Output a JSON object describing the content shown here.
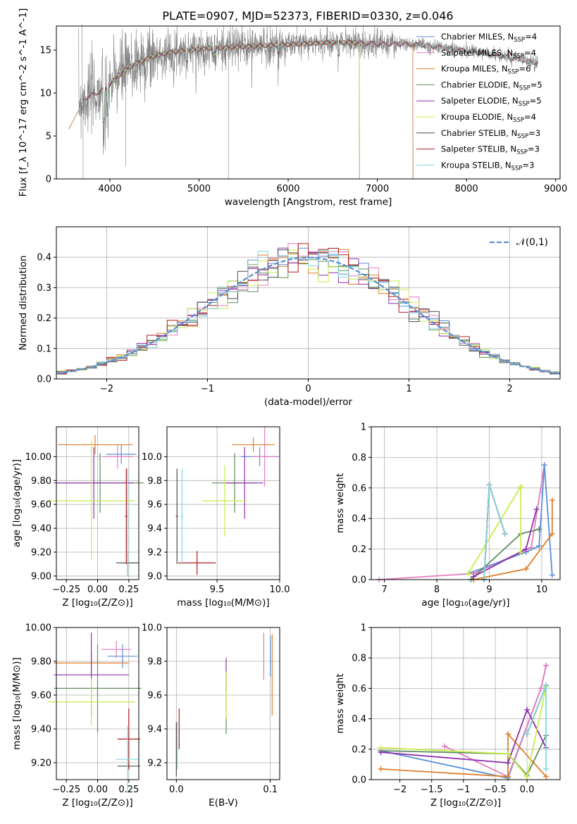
{
  "figure": {
    "title": "PLATE=0907, MJD=52373, FIBERID=0330, z=0.046"
  },
  "colors": {
    "Chabrier MILES": "#5b8fd6",
    "Salpeter MILES": "#e37dbf",
    "Kroupa MILES": "#e07f2a",
    "Chabrier ELODIE": "#5e8e5e",
    "Salpeter ELODIE": "#8e2fae",
    "Kroupa ELODIE": "#c9ec4c",
    "Chabrier STELIB": "#4d4d4d",
    "Salpeter STELIB": "#b31c1c",
    "Kroupa STELIB": "#7fd9e0",
    "gaussian": "#5b8fd6",
    "spectrum": "#808080"
  },
  "chart_data": [
    {
      "id": "spectrum",
      "type": "line",
      "title": "PLATE=0907, MJD=52373, FIBERID=0330, z=0.046",
      "xlabel": "wavelength [Angstrom, rest frame]",
      "ylabel": "Flux [f_λ 10^-17 erg cm^-2 s^-1 A^-1]",
      "xlim": [
        3400,
        9050
      ],
      "ylim": [
        0,
        17.8
      ],
      "xticks": [
        4000,
        5000,
        6000,
        7000,
        8000,
        9000
      ],
      "yticks": [
        0,
        5,
        10,
        15
      ],
      "legend_position": "right",
      "legend": [
        {
          "name": "Chabrier MILES",
          "nssp": "4"
        },
        {
          "name": "Salpeter MILES",
          "nssp": "4"
        },
        {
          "name": "Kroupa MILES",
          "nssp": "6"
        },
        {
          "name": "Chabrier ELODIE",
          "nssp": "5"
        },
        {
          "name": "Salpeter ELODIE",
          "nssp": "5"
        },
        {
          "name": "Kroupa ELODIE",
          "nssp": "4"
        },
        {
          "name": "Chabrier STELIB",
          "nssp": "3"
        },
        {
          "name": "Salpeter STELIB",
          "nssp": "3"
        },
        {
          "name": "Kroupa STELIB",
          "nssp": "3"
        }
      ],
      "data_profile": {
        "x": [
          3650,
          3750,
          3850,
          3950,
          4050,
          4150,
          4300,
          4500,
          4700,
          4900,
          5100,
          5300,
          5500,
          5700,
          5900,
          6100,
          6300,
          6500,
          6700,
          6900,
          7100,
          7300,
          7500,
          7800,
          8100,
          8400,
          8800
        ],
        "y": [
          9.0,
          9.5,
          10.0,
          10.5,
          11.5,
          12.5,
          13.5,
          14.3,
          14.8,
          15.0,
          15.2,
          15.3,
          15.4,
          15.5,
          15.6,
          15.7,
          15.8,
          15.9,
          15.9,
          15.8,
          15.7,
          15.7,
          15.6,
          15.2,
          14.8,
          14.3,
          13.5
        ]
      },
      "model_ranges": {
        "MILES": [
          3540,
          7400
        ],
        "ELODIE": [
          3900,
          6800
        ],
        "STELIB": [
          3650,
          8800
        ]
      }
    },
    {
      "id": "residuals",
      "type": "line",
      "xlabel": "(data-model)/error",
      "ylabel": "Normed distribution",
      "xlim": [
        -2.5,
        2.5
      ],
      "ylim": [
        0,
        0.5
      ],
      "xticks": [
        -2,
        -1,
        0,
        1,
        2
      ],
      "yticks": [
        0.0,
        0.1,
        0.2,
        0.3,
        0.4
      ],
      "grid": true,
      "legend_position": "top-right",
      "legend": [
        {
          "name": "𝒩(0,1)"
        }
      ],
      "hist_bin_width": 0.1
    },
    {
      "id": "age_vs_Z",
      "type": "scatter",
      "xlabel": "Z [log10(Z/Z⊙)]",
      "ylabel": "age  [log10(age/yr)]",
      "xlim": [
        -0.33,
        0.33
      ],
      "ylim": [
        8.97,
        10.25
      ],
      "xticks": [
        -0.25,
        0.0,
        0.25
      ],
      "yticks": [
        9.0,
        9.2,
        9.4,
        9.6,
        9.8,
        10.0
      ],
      "grid": true,
      "points": [
        {
          "series": "Chabrier MILES",
          "x": 0.19,
          "y": 10.02,
          "xerr": 0.12,
          "yerr": 0.08
        },
        {
          "series": "Salpeter MILES",
          "x": 0.16,
          "y": 10.0,
          "xerr": 0.12,
          "yerr": 0.1
        },
        {
          "series": "Kroupa MILES",
          "x": -0.02,
          "y": 10.1,
          "xerr": 0.3,
          "yerr": 0.08
        },
        {
          "series": "Chabrier ELODIE",
          "x": 0.02,
          "y": 9.78,
          "xerr": 0.35,
          "yerr": 0.25
        },
        {
          "series": "Salpeter ELODIE",
          "x": -0.03,
          "y": 9.78,
          "xerr": 0.32,
          "yerr": 0.3
        },
        {
          "series": "Kroupa ELODIE",
          "x": -0.05,
          "y": 9.63,
          "xerr": 0.35,
          "yerr": 0.5
        },
        {
          "series": "Chabrier STELIB",
          "x": 0.24,
          "y": 9.11,
          "xerr": 0.09,
          "yerr": 0.1
        },
        {
          "series": "Salpeter STELIB",
          "x": 0.23,
          "y": 9.5,
          "xerr": 0.01,
          "yerr": 0.4
        },
        {
          "series": "Kroupa STELIB",
          "x": 0.24,
          "y": 9.45,
          "xerr": 0.01,
          "yerr": 0.45
        }
      ]
    },
    {
      "id": "age_vs_mass",
      "type": "scatter",
      "xlabel": "mass [log10(M/M⊙)]",
      "ylabel": "",
      "xlim": [
        9.1,
        10.0
      ],
      "ylim": [
        8.97,
        10.25
      ],
      "xticks": [
        9.5,
        10.0
      ],
      "yticks": [
        9.0,
        9.2,
        9.4,
        9.6,
        9.8,
        10.0
      ],
      "grid": true,
      "points": [
        {
          "series": "Chabrier MILES",
          "x": 9.84,
          "y": 10.0,
          "xerr": 0.15,
          "yerr": 0.08
        },
        {
          "series": "Salpeter MILES",
          "x": 9.88,
          "y": 10.0,
          "xerr": 0.1,
          "yerr": 0.25
        },
        {
          "series": "Kroupa MILES",
          "x": 9.79,
          "y": 10.1,
          "xerr": 0.17,
          "yerr": 0.06
        },
        {
          "series": "Chabrier ELODIE",
          "x": 9.64,
          "y": 9.78,
          "xerr": 0.18,
          "yerr": 0.25
        },
        {
          "series": "Salpeter ELODIE",
          "x": 9.72,
          "y": 9.78,
          "xerr": 0.15,
          "yerr": 0.3
        },
        {
          "series": "Kroupa ELODIE",
          "x": 9.56,
          "y": 9.63,
          "xerr": 0.18,
          "yerr": 0.3
        },
        {
          "series": "Chabrier STELIB",
          "x": 9.18,
          "y": 9.5,
          "xerr": 0.01,
          "yerr": 0.4
        },
        {
          "series": "Salpeter STELIB",
          "x": 9.34,
          "y": 9.11,
          "xerr": 0.15,
          "yerr": 0.1
        },
        {
          "series": "Kroupa STELIB",
          "x": 9.22,
          "y": 9.5,
          "xerr": 0.01,
          "yerr": 0.4
        }
      ]
    },
    {
      "id": "mass_weight_vs_age",
      "type": "line",
      "xlabel": "age  [log10(age/yr)]",
      "ylabel": "mass weight",
      "xlim": [
        6.75,
        10.35
      ],
      "ylim": [
        0,
        1.0
      ],
      "xticks": [
        7,
        8,
        9,
        10
      ],
      "yticks": [
        0.0,
        0.2,
        0.4,
        0.6,
        0.8,
        1.0
      ],
      "grid": true,
      "series": [
        {
          "name": "Salpeter MILES",
          "x": [
            6.9,
            8.7,
            9.8,
            10.05
          ],
          "y": [
            0.0,
            0.04,
            0.21,
            0.75
          ]
        },
        {
          "name": "Chabrier MILES",
          "x": [
            8.6,
            9.7,
            9.95,
            10.05,
            10.2
          ],
          "y": [
            0.04,
            0.18,
            0.22,
            0.75,
            0.03
          ]
        },
        {
          "name": "Kroupa MILES",
          "x": [
            8.7,
            9.7,
            10.2,
            10.2
          ],
          "y": [
            0.0,
            0.07,
            0.3,
            0.52
          ]
        },
        {
          "name": "Chabrier ELODIE",
          "x": [
            8.65,
            9.6,
            9.95
          ],
          "y": [
            0.0,
            0.3,
            0.33
          ]
        },
        {
          "name": "Salpeter ELODIE",
          "x": [
            8.7,
            9.7,
            9.9
          ],
          "y": [
            0.02,
            0.2,
            0.46
          ]
        },
        {
          "name": "Kroupa ELODIE",
          "x": [
            8.6,
            9.6,
            9.6
          ],
          "y": [
            0.04,
            0.61,
            0.18
          ]
        },
        {
          "name": "Chabrier STELIB",
          "x": [
            8.9,
            9.0,
            9.3
          ],
          "y": [
            0.0,
            0.62,
            0.3
          ]
        },
        {
          "name": "Salpeter STELIB",
          "x": [
            8.9,
            9.0,
            9.3
          ],
          "y": [
            0.0,
            0.62,
            0.3
          ]
        },
        {
          "name": "Kroupa STELIB",
          "x": [
            8.9,
            9.0,
            9.3
          ],
          "y": [
            0.0,
            0.62,
            0.3
          ]
        }
      ]
    },
    {
      "id": "mass_vs_Z",
      "type": "scatter",
      "xlabel": "Z [log10(Z/Z⊙)]",
      "ylabel": "mass [log10(M/M⊙)]",
      "xlim": [
        -0.33,
        0.33
      ],
      "ylim": [
        9.1,
        10.0
      ],
      "xticks": [
        -0.25,
        0.0,
        0.25
      ],
      "yticks": [
        9.2,
        9.4,
        9.6,
        9.8,
        10.0
      ],
      "grid": true,
      "points": [
        {
          "series": "Chabrier MILES",
          "x": 0.2,
          "y": 9.83,
          "xerr": 0.12,
          "yerr": 0.07
        },
        {
          "series": "Salpeter MILES",
          "x": 0.15,
          "y": 9.87,
          "xerr": 0.12,
          "yerr": 0.05
        },
        {
          "series": "Kroupa MILES",
          "x": -0.05,
          "y": 9.79,
          "xerr": 0.3,
          "yerr": 0.06
        },
        {
          "series": "Chabrier ELODIE",
          "x": 0.0,
          "y": 9.64,
          "xerr": 0.35,
          "yerr": 0.26
        },
        {
          "series": "Salpeter ELODIE",
          "x": -0.05,
          "y": 9.72,
          "xerr": 0.3,
          "yerr": 0.25
        },
        {
          "series": "Kroupa ELODIE",
          "x": -0.05,
          "y": 9.56,
          "xerr": 0.35,
          "yerr": 0.14
        },
        {
          "series": "Chabrier STELIB",
          "x": 0.25,
          "y": 9.18,
          "xerr": 0.09,
          "yerr": 0.01
        },
        {
          "series": "Salpeter STELIB",
          "x": 0.25,
          "y": 9.34,
          "xerr": 0.09,
          "yerr": 0.18
        },
        {
          "series": "Kroupa STELIB",
          "x": 0.24,
          "y": 9.22,
          "xerr": 0.09,
          "yerr": 0.2
        }
      ]
    },
    {
      "id": "mass_vs_ebv",
      "type": "scatter",
      "xlabel": "E(B-V)",
      "ylabel": "",
      "xlim": [
        -0.01,
        0.11
      ],
      "ylim": [
        9.1,
        10.0
      ],
      "xticks": [
        0.0,
        0.1
      ],
      "yticks": [
        9.2,
        9.4,
        9.6,
        9.8,
        10.0
      ],
      "grid": true,
      "points": [
        {
          "series": "Chabrier MILES",
          "x": 0.1,
          "y": 9.83,
          "xerr": 0.0,
          "yerr": 0.12
        },
        {
          "series": "Salpeter MILES",
          "x": 0.093,
          "y": 9.83,
          "xerr": 0.0,
          "yerr": 0.14
        },
        {
          "series": "Kroupa MILES",
          "x": 0.102,
          "y": 9.72,
          "xerr": 0.0,
          "yerr": 0.24
        },
        {
          "series": "Chabrier ELODIE",
          "x": 0.053,
          "y": 9.55,
          "xerr": 0.0,
          "yerr": 0.18
        },
        {
          "series": "Salpeter ELODIE",
          "x": 0.053,
          "y": 9.72,
          "xerr": 0.0,
          "yerr": 0.1
        },
        {
          "series": "Kroupa ELODIE",
          "x": 0.053,
          "y": 9.6,
          "xerr": 0.0,
          "yerr": 0.14
        },
        {
          "series": "Chabrier STELIB",
          "x": 0.0,
          "y": 9.28,
          "xerr": 0.0,
          "yerr": 0.16
        },
        {
          "series": "Salpeter STELIB",
          "x": 0.003,
          "y": 9.4,
          "xerr": 0.0,
          "yerr": 0.12
        },
        {
          "series": "Kroupa STELIB",
          "x": 0.001,
          "y": 9.3,
          "xerr": 0.0,
          "yerr": 0.14
        }
      ]
    },
    {
      "id": "mass_weight_vs_Z",
      "type": "line",
      "xlabel": "Z [log10(Z/Z⊙)]",
      "ylabel": "mass weight",
      "xlim": [
        -2.45,
        0.52
      ],
      "ylim": [
        0,
        1.0
      ],
      "xticks": [
        -2.0,
        -1.5,
        -1.0,
        -0.5,
        0.0
      ],
      "yticks": [
        0.0,
        0.2,
        0.4,
        0.6,
        0.8,
        1.0
      ],
      "grid": true,
      "series": [
        {
          "name": "Chabrier MILES",
          "x": [
            -2.3,
            -0.3,
            0.22,
            0.3
          ],
          "y": [
            0.19,
            0.01,
            0.6,
            0.75
          ]
        },
        {
          "name": "Salpeter MILES",
          "x": [
            -1.3,
            -0.3,
            0.22,
            0.3
          ],
          "y": [
            0.22,
            0.02,
            0.6,
            0.75
          ]
        },
        {
          "name": "Kroupa MILES",
          "x": [
            -2.3,
            -0.3,
            -0.3,
            0.3
          ],
          "y": [
            0.07,
            0.02,
            0.3,
            0.02
          ]
        },
        {
          "name": "Chabrier ELODIE",
          "x": [
            -2.3,
            -0.3,
            0.0,
            0.3
          ],
          "y": [
            0.19,
            0.17,
            0.03,
            0.29
          ]
        },
        {
          "name": "Salpeter ELODIE",
          "x": [
            -2.3,
            -0.3,
            0.0,
            0.3
          ],
          "y": [
            0.18,
            0.11,
            0.46,
            0.21
          ]
        },
        {
          "name": "Kroupa ELODIE",
          "x": [
            -2.3,
            -0.3,
            0.0,
            0.3
          ],
          "y": [
            0.21,
            0.17,
            0.02,
            0.61
          ]
        },
        {
          "name": "Chabrier STELIB",
          "x": [
            0.0,
            0.3
          ],
          "y": [
            0.3,
            0.62
          ]
        },
        {
          "name": "Salpeter STELIB",
          "x": [
            0.0,
            0.3
          ],
          "y": [
            0.3,
            0.62
          ]
        },
        {
          "name": "Kroupa STELIB",
          "x": [
            0.0,
            0.3,
            0.3
          ],
          "y": [
            0.3,
            0.62,
            0.07
          ]
        }
      ]
    }
  ]
}
